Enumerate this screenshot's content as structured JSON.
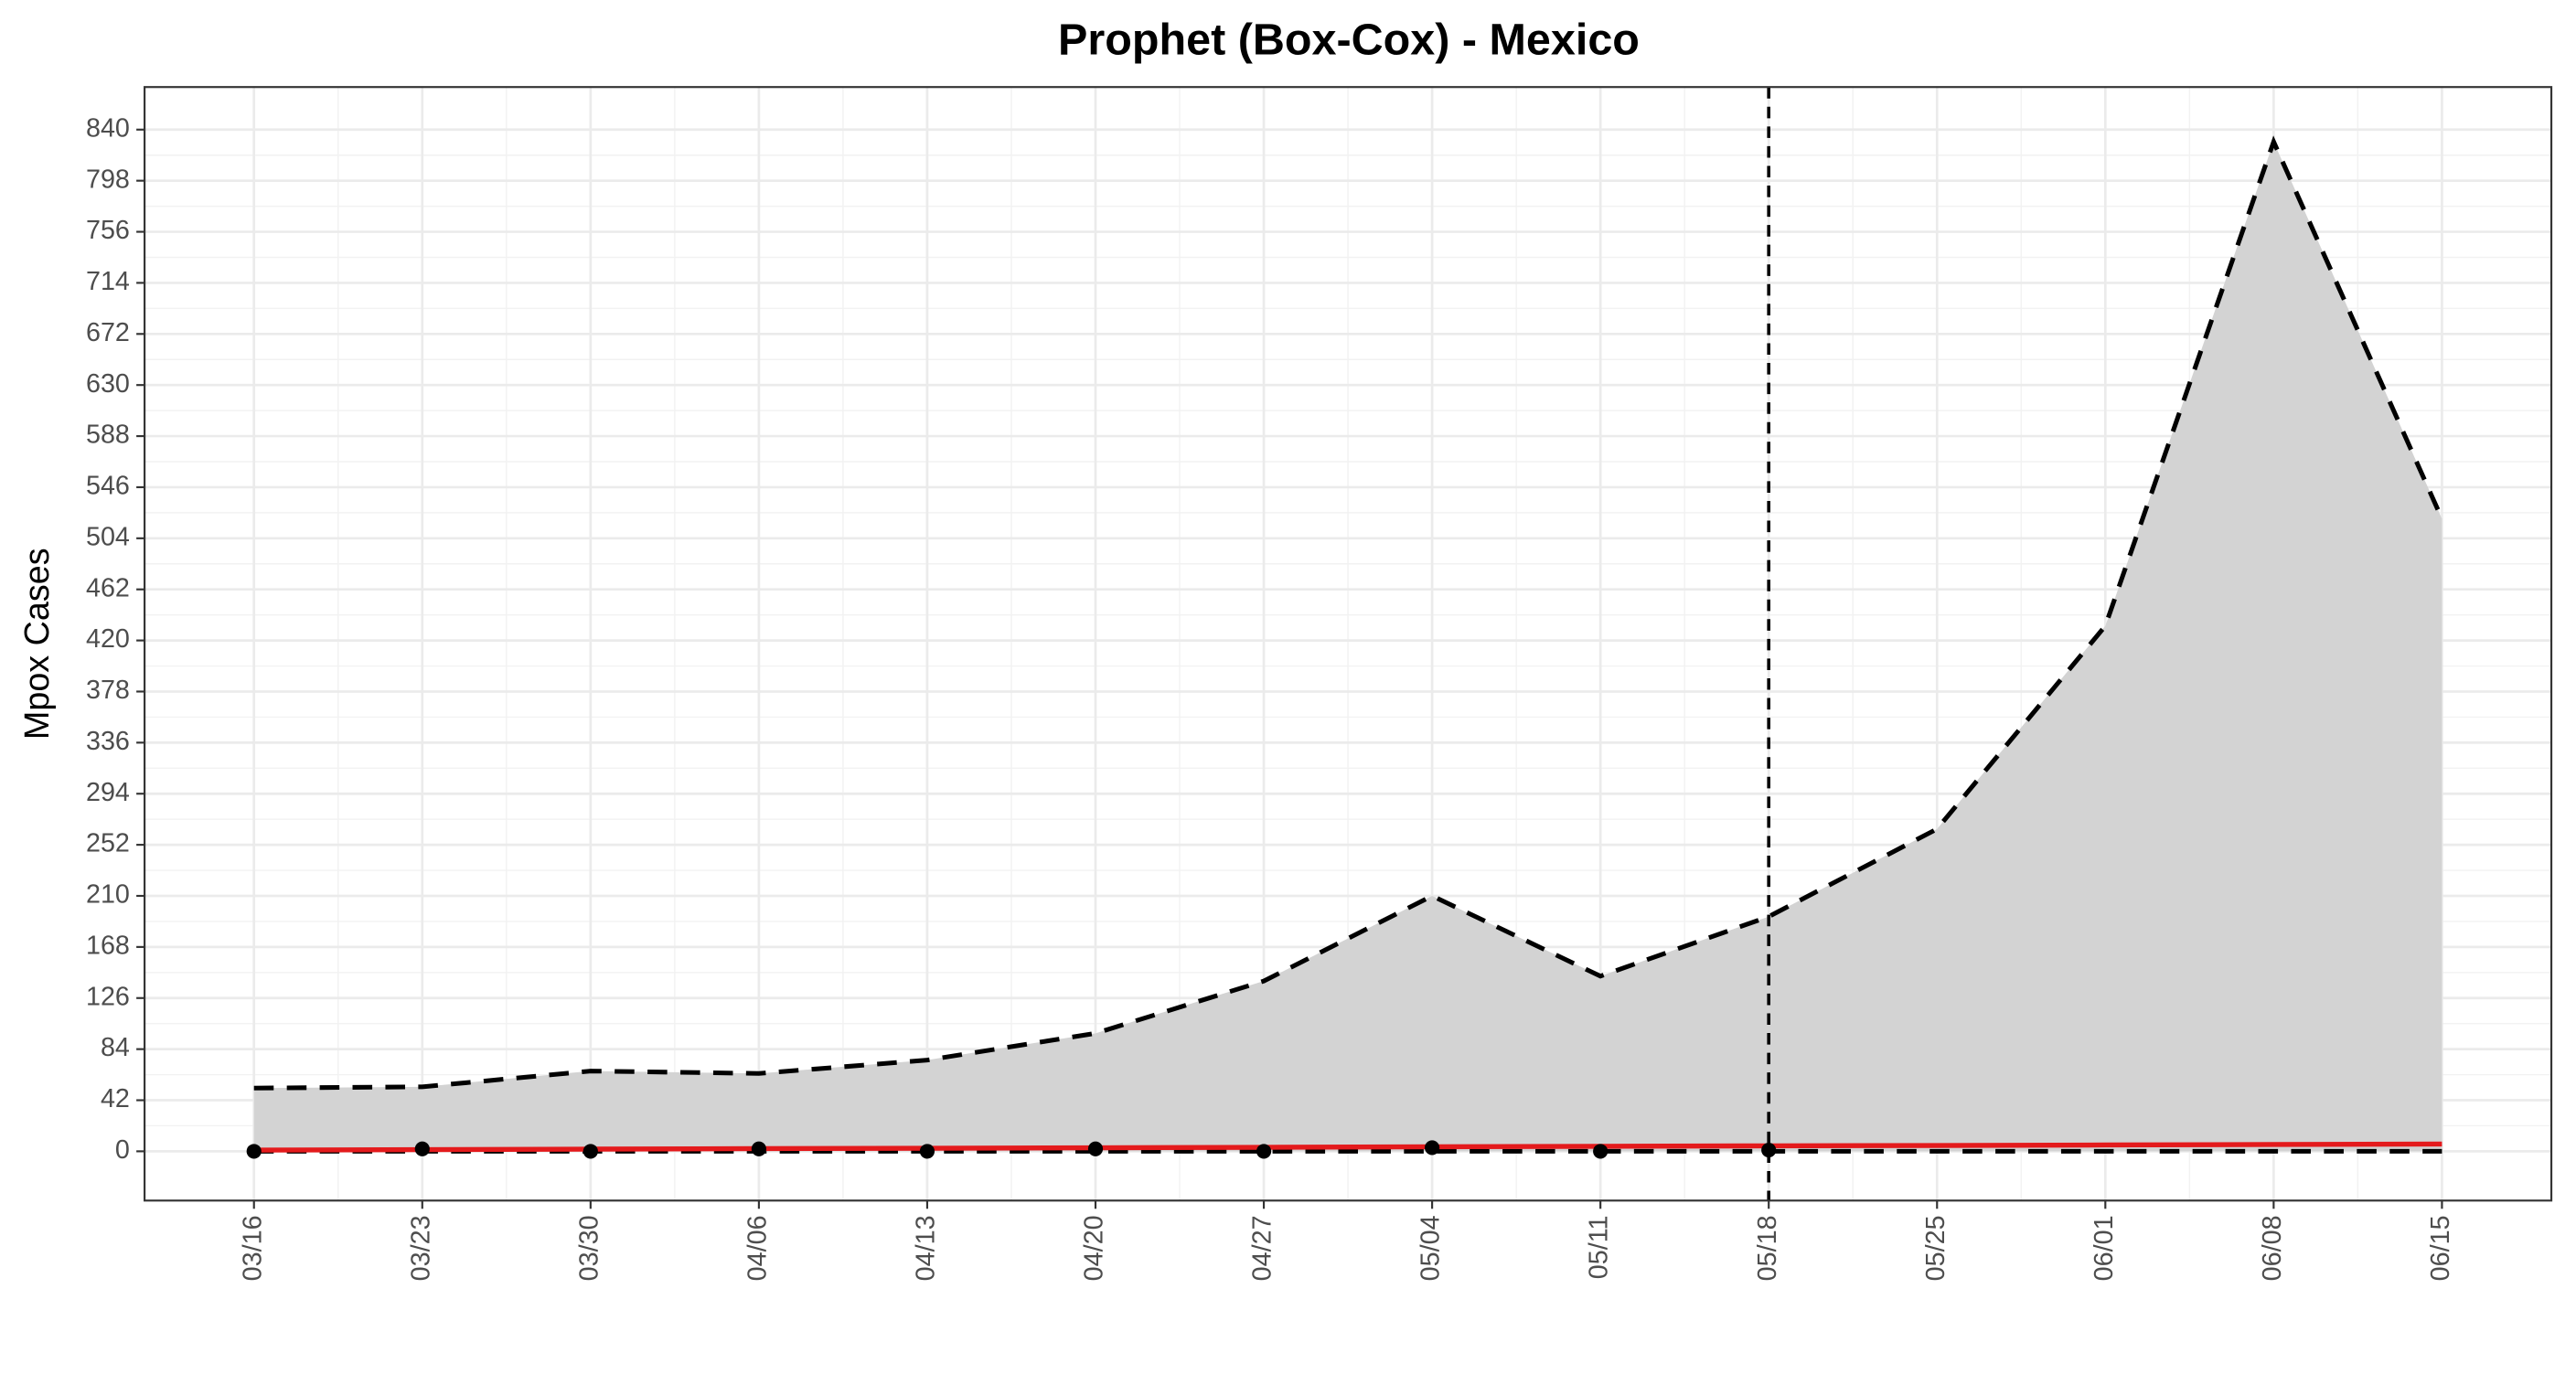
{
  "chart_data": {
    "type": "line",
    "title": "Prophet (Box-Cox) - Mexico",
    "y_label": "Mpox Cases",
    "categories": [
      "03/16",
      "03/23",
      "03/30",
      "04/06",
      "04/13",
      "04/20",
      "04/27",
      "05/04",
      "05/11",
      "05/18",
      "05/25",
      "06/01",
      "06/08",
      "06/15"
    ],
    "band_color": "#d3d3d3",
    "series": [
      {
        "role": "upper",
        "color": "#000000",
        "dash": true,
        "values": [
          52,
          53,
          66,
          64,
          75,
          97,
          140,
          210,
          144,
          193,
          265,
          432,
          830,
          520
        ]
      },
      {
        "role": "lower",
        "color": "#000000",
        "dash": true,
        "values": [
          0,
          0,
          0,
          0,
          0,
          0,
          0,
          0,
          0,
          0,
          0,
          0,
          0,
          0
        ]
      },
      {
        "role": "forecast",
        "color": "#e41a1c",
        "values": [
          1.0,
          1.4,
          1.8,
          2.2,
          2.5,
          2.9,
          3.3,
          3.7,
          4.1,
          4.5,
          4.8,
          5.2,
          5.6,
          6.0
        ]
      },
      {
        "role": "actual",
        "color": "#000000",
        "points": true,
        "values": [
          0,
          2,
          0,
          2,
          0,
          2,
          0,
          3,
          0,
          1,
          null,
          null,
          null,
          null
        ]
      }
    ],
    "vline": "05/18",
    "ylim": [
      -40.5,
      875
    ],
    "yticks": [
      0,
      42,
      84,
      126,
      168,
      210,
      252,
      294,
      336,
      378,
      420,
      462,
      504,
      546,
      588,
      630,
      672,
      714,
      756,
      798,
      840
    ],
    "grid": true
  }
}
